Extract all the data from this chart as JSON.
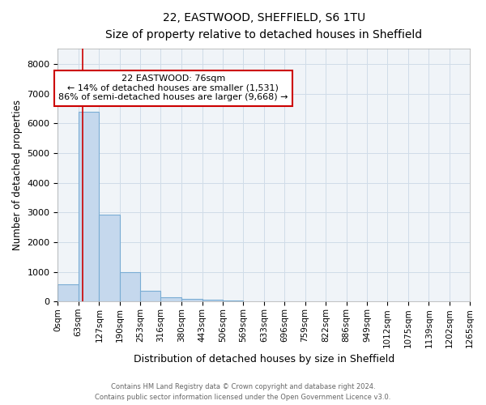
{
  "title": "22, EASTWOOD, SHEFFIELD, S6 1TU",
  "subtitle": "Size of property relative to detached houses in Sheffield",
  "xlabel": "Distribution of detached houses by size in Sheffield",
  "ylabel": "Number of detached properties",
  "annotation_line1": "22 EASTWOOD: 76sqm",
  "annotation_line2": "← 14% of detached houses are smaller (1,531)",
  "annotation_line3": "86% of semi-detached houses are larger (9,668) →",
  "property_size": 76,
  "bin_edges": [
    0,
    63,
    127,
    190,
    253,
    316,
    380,
    443,
    506,
    569,
    633,
    696,
    759,
    822,
    886,
    949,
    1012,
    1075,
    1139,
    1202,
    1265
  ],
  "bar_heights": [
    580,
    6400,
    2920,
    980,
    370,
    155,
    100,
    65,
    40,
    5,
    3,
    2,
    2,
    1,
    1,
    0,
    0,
    0,
    0,
    0
  ],
  "bar_face_color": "#c5d8ed",
  "bar_edge_color": "#7aadd4",
  "vline_color": "#cc0000",
  "annotation_box_color": "#cc0000",
  "grid_color": "#d0dce8",
  "background_color": "#f0f4f8",
  "ylim": [
    0,
    8500
  ],
  "yticks": [
    0,
    1000,
    2000,
    3000,
    4000,
    5000,
    6000,
    7000,
    8000
  ],
  "footnote1": "Contains HM Land Registry data © Crown copyright and database right 2024.",
  "footnote2": "Contains public sector information licensed under the Open Government Licence v3.0."
}
